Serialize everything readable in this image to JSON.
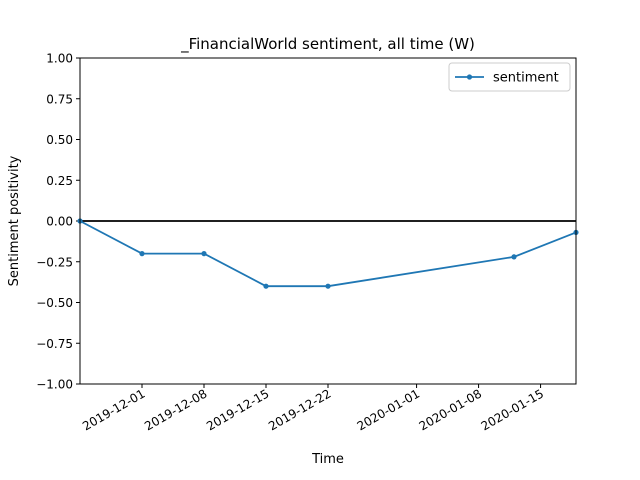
{
  "chart_data": {
    "type": "line",
    "title": "_FinancialWorld sentiment, all time (W)",
    "xlabel": "Time",
    "ylabel": "Sentiment positivity",
    "ylim": [
      -1.0,
      1.0
    ],
    "xlim": [
      "2019-11-24",
      "2020-01-19"
    ],
    "yticks": [
      "1.00",
      "0.75",
      "0.50",
      "0.25",
      "0.00",
      "−0.25",
      "−0.50",
      "−0.75",
      "−1.00"
    ],
    "xticks": [
      "2019-12-01",
      "2019-12-08",
      "2019-12-15",
      "2019-12-22",
      "2020-01-01",
      "2020-01-08",
      "2020-01-15"
    ],
    "baseline": 0.0,
    "grid": false,
    "legend": "top-right",
    "series": [
      {
        "name": "sentiment",
        "color": "#1f77b4",
        "marker": "dot",
        "x": [
          "2019-11-24",
          "2019-12-01",
          "2019-12-08",
          "2019-12-15",
          "2019-12-22",
          "2020-01-12",
          "2020-01-19"
        ],
        "y": [
          0.0,
          -0.2,
          -0.2,
          -0.4,
          -0.4,
          -0.22,
          -0.07
        ]
      }
    ]
  }
}
